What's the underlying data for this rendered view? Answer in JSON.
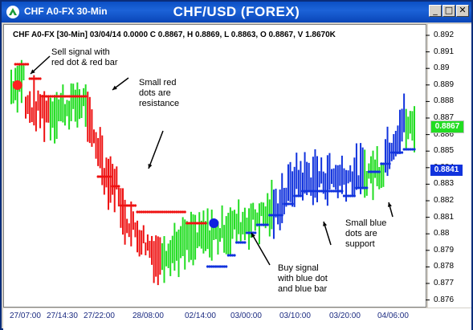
{
  "window": {
    "title_left": "CHF A0-FX 30-Min",
    "title_center": "CHF/USD (FOREX)",
    "minimize_label": "_",
    "maximize_label": "□",
    "close_label": "✕"
  },
  "info_line": "CHF A0-FX [30-Min] 03/04/14  0.0000  C 0.8867, H 0.8869, L 0.8863, O 0.8867, V 1.8670K",
  "price_axis": [
    "0.892",
    "0.891",
    "0.89",
    "0.889",
    "0.888",
    "0.887",
    "0.886",
    "0.885",
    "0.884",
    "0.883",
    "0.882",
    "0.881",
    "0.88",
    "0.879",
    "0.878",
    "0.877",
    "0.876"
  ],
  "time_axis": [
    "27/07:00",
    "27/14:30",
    "27/22:00",
    "28/08:00",
    "02/14:00",
    "03/00:00",
    "03/10:00",
    "03/20:00",
    "04/06:00"
  ],
  "current_price": {
    "value": "0.8867",
    "color": "#00c000"
  },
  "support_price": {
    "value": "0.8841",
    "color": "#0000e0"
  },
  "annotations": {
    "sell": [
      "Sell signal with",
      "red dot & red bar"
    ],
    "resistance": [
      "Small red",
      "dots are",
      "resistance"
    ],
    "buy": [
      "Buy signal",
      "with blue dot",
      "and blue bar"
    ],
    "support": [
      "Small blue",
      "dots are",
      "support"
    ]
  },
  "colors": {
    "up_bar": "#22dd22",
    "down_bar": "#ee1111",
    "blue_bar": "#1133dd",
    "resistance_dot": "#ee1111",
    "support_dot": "#1133dd"
  },
  "chart_data": {
    "type": "bar",
    "title": "CHF/USD (FOREX)",
    "ylim": [
      0.876,
      0.8925
    ],
    "resistance_levels": [
      {
        "from_index": 2,
        "to_index": 8,
        "price": 0.8907
      },
      {
        "from_index": 9,
        "to_index": 14,
        "price": 0.8898
      },
      {
        "from_index": 15,
        "to_index": 36,
        "price": 0.8887
      },
      {
        "from_index": 42,
        "to_index": 48,
        "price": 0.8837
      },
      {
        "from_index": 49,
        "to_index": 52,
        "price": 0.8831
      },
      {
        "from_index": 53,
        "to_index": 60,
        "price": 0.8819
      },
      {
        "from_index": 61,
        "to_index": 84,
        "price": 0.8815
      },
      {
        "from_index": 85,
        "to_index": 94,
        "price": 0.8808
      }
    ],
    "support_levels": [
      {
        "from_index": 95,
        "to_index": 104,
        "price": 0.8781
      },
      {
        "from_index": 105,
        "to_index": 108,
        "price": 0.8788
      },
      {
        "from_index": 109,
        "to_index": 113,
        "price": 0.8796
      },
      {
        "from_index": 114,
        "to_index": 118,
        "price": 0.8802
      },
      {
        "from_index": 119,
        "to_index": 124,
        "price": 0.8807
      },
      {
        "from_index": 125,
        "to_index": 131,
        "price": 0.8813
      },
      {
        "from_index": 132,
        "to_index": 136,
        "price": 0.882
      },
      {
        "from_index": 137,
        "to_index": 140,
        "price": 0.8825
      },
      {
        "from_index": 141,
        "to_index": 160,
        "price": 0.8828
      },
      {
        "from_index": 161,
        "to_index": 166,
        "price": 0.8825
      },
      {
        "from_index": 167,
        "to_index": 172,
        "price": 0.883
      },
      {
        "from_index": 173,
        "to_index": 178,
        "price": 0.884
      },
      {
        "from_index": 179,
        "to_index": 183,
        "price": 0.8845
      },
      {
        "from_index": 184,
        "to_index": 189,
        "price": 0.8852
      },
      {
        "from_index": 190,
        "to_index": 195,
        "price": 0.8854
      }
    ],
    "sell_signal": {
      "index": 3,
      "price": 0.8894
    },
    "buy_signal": {
      "index": 98,
      "price": 0.8808
    },
    "segments": [
      {
        "from": 0,
        "to": 6,
        "start": 0.8893,
        "end": 0.89,
        "color": "green"
      },
      {
        "from": 7,
        "to": 18,
        "start": 0.888,
        "end": 0.8878,
        "color": "red"
      },
      {
        "from": 19,
        "to": 36,
        "start": 0.8877,
        "end": 0.8884,
        "color": "green"
      },
      {
        "from": 37,
        "to": 44,
        "start": 0.887,
        "end": 0.885,
        "color": "red"
      },
      {
        "from": 45,
        "to": 52,
        "start": 0.884,
        "end": 0.883,
        "color": "red"
      },
      {
        "from": 53,
        "to": 72,
        "start": 0.8815,
        "end": 0.8785,
        "color": "red"
      },
      {
        "from": 73,
        "to": 94,
        "start": 0.879,
        "end": 0.88,
        "color": "green"
      },
      {
        "from": 95,
        "to": 126,
        "start": 0.88,
        "end": 0.8815,
        "color": "green"
      },
      {
        "from": 127,
        "to": 136,
        "start": 0.8815,
        "end": 0.8832,
        "color": "blue"
      },
      {
        "from": 137,
        "to": 170,
        "start": 0.8835,
        "end": 0.8838,
        "color": "blue"
      },
      {
        "from": 171,
        "to": 180,
        "start": 0.8838,
        "end": 0.8843,
        "color": "green"
      },
      {
        "from": 181,
        "to": 190,
        "start": 0.885,
        "end": 0.8872,
        "color": "blue"
      },
      {
        "from": 191,
        "to": 195,
        "start": 0.8868,
        "end": 0.8867,
        "color": "green"
      }
    ]
  }
}
